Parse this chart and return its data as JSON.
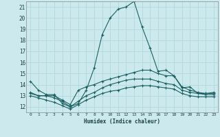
{
  "xlabel": "Humidex (Indice chaleur)",
  "xlim": [
    -0.5,
    23.5
  ],
  "ylim": [
    11.5,
    21.5
  ],
  "yticks": [
    12,
    13,
    14,
    15,
    16,
    17,
    18,
    19,
    20,
    21
  ],
  "xticks": [
    0,
    1,
    2,
    3,
    4,
    5,
    6,
    7,
    8,
    9,
    10,
    11,
    12,
    13,
    14,
    15,
    16,
    17,
    18,
    19,
    20,
    21,
    22,
    23
  ],
  "bg_color": "#cce9ed",
  "line_color": "#1a6060",
  "grid_color": "#b0d8de",
  "lines": [
    {
      "x": [
        0,
        1,
        2,
        3,
        4,
        5,
        6,
        7,
        8,
        9,
        10,
        11,
        12,
        13,
        14,
        15,
        16,
        17,
        18,
        19,
        20,
        21,
        22,
        23
      ],
      "y": [
        14.3,
        13.5,
        13.1,
        13.1,
        12.3,
        12.0,
        12.3,
        13.5,
        15.5,
        18.5,
        20.0,
        20.8,
        21.0,
        21.5,
        19.2,
        17.3,
        15.2,
        15.3,
        14.8,
        13.7,
        13.8,
        13.2,
        13.2,
        13.3
      ]
    },
    {
      "x": [
        0,
        1,
        2,
        3,
        4,
        5,
        6,
        7,
        8,
        9,
        10,
        11,
        12,
        13,
        14,
        15,
        16,
        17,
        18,
        19,
        20,
        21,
        22,
        23
      ],
      "y": [
        13.3,
        13.0,
        13.0,
        13.0,
        12.6,
        12.2,
        13.5,
        13.8,
        14.0,
        14.3,
        14.5,
        14.7,
        14.9,
        15.1,
        15.3,
        15.3,
        15.0,
        14.8,
        14.8,
        13.8,
        13.5,
        13.3,
        13.2,
        13.2
      ]
    },
    {
      "x": [
        0,
        1,
        2,
        3,
        4,
        5,
        6,
        7,
        8,
        9,
        10,
        11,
        12,
        13,
        14,
        15,
        16,
        17,
        18,
        19,
        20,
        21,
        22,
        23
      ],
      "y": [
        13.2,
        13.0,
        13.0,
        12.8,
        12.5,
        12.0,
        12.5,
        13.0,
        13.3,
        13.7,
        14.0,
        14.2,
        14.4,
        14.5,
        14.5,
        14.5,
        14.3,
        14.1,
        14.0,
        13.5,
        13.3,
        13.2,
        13.1,
        13.1
      ]
    },
    {
      "x": [
        0,
        1,
        2,
        3,
        4,
        5,
        6,
        7,
        8,
        9,
        10,
        11,
        12,
        13,
        14,
        15,
        16,
        17,
        18,
        19,
        20,
        21,
        22,
        23
      ],
      "y": [
        13.0,
        12.8,
        12.6,
        12.4,
        12.1,
        11.8,
        12.2,
        12.6,
        12.9,
        13.2,
        13.4,
        13.5,
        13.7,
        13.8,
        13.9,
        13.9,
        13.8,
        13.7,
        13.6,
        13.2,
        13.0,
        12.9,
        12.9,
        12.9
      ]
    }
  ]
}
